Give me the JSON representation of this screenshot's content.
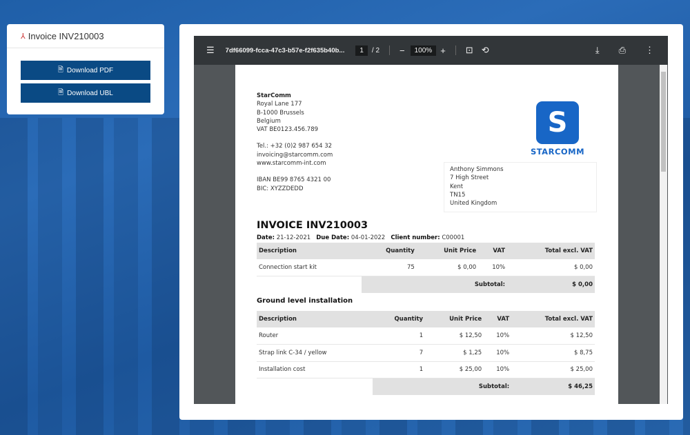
{
  "sidebar": {
    "title": "Invoice INV210003",
    "download_pdf": "Download PDF",
    "download_ubl": "Download UBL"
  },
  "viewer": {
    "filename": "7df66099-fcca-47c3-b57e-f2f635b40b...",
    "page": "1",
    "page_total": "/ 2",
    "zoom": "100%"
  },
  "invoice": {
    "sender": {
      "name": "StarComm",
      "lines": [
        "Royal Lane 177",
        "B-1000 Brussels",
        "Belgium",
        "VAT BE0123.456.789"
      ],
      "contact": [
        "Tel.: +32 (0)2 987 654 32",
        "invoicing@starcomm.com",
        "www.starcomm-int.com"
      ],
      "bank": [
        "IBAN BE99 8765 4321 00",
        "BIC: XYZZDEDD"
      ]
    },
    "logo_text": "STARCOMM",
    "recipient": [
      "Anthony Simmons",
      "7 High Street",
      "Kent",
      "TN15",
      "United Kingdom"
    ],
    "title": "INVOICE INV210003",
    "date_label": "Date:",
    "date": "21-12-2021",
    "due_label": "Due Date:",
    "due": "04-01-2022",
    "client_label": "Client number:",
    "client": "C00001",
    "headers": [
      "Description",
      "Quantity",
      "Unit Price",
      "VAT",
      "Total excl. VAT"
    ],
    "subtotal_label": "Subtotal:",
    "group1": {
      "rows": [
        [
          "Connection start kit",
          "75",
          "$ 0,00",
          "10%",
          "$ 0,00"
        ]
      ],
      "subtotal": "$ 0,00"
    },
    "group2": {
      "title": "Ground level installation",
      "rows": [
        [
          "Router",
          "1",
          "$ 12,50",
          "10%",
          "$ 12,50"
        ],
        [
          "Strap link C-34 / yellow",
          "7",
          "$ 1,25",
          "10%",
          "$ 8,75"
        ],
        [
          "Installation cost",
          "1",
          "$ 25,00",
          "10%",
          "$ 25,00"
        ]
      ],
      "subtotal": "$ 46,25"
    }
  }
}
